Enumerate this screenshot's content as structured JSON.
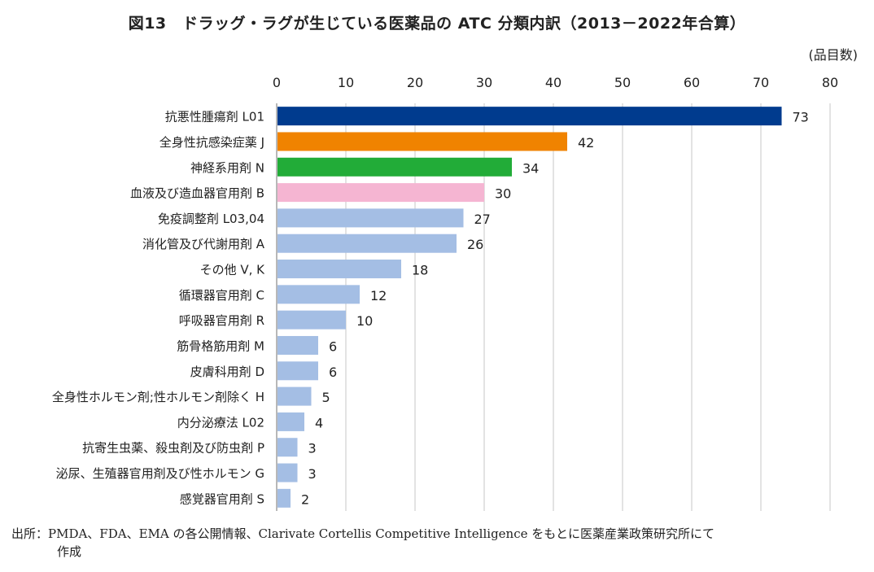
{
  "chart_data": {
    "type": "bar",
    "orientation": "horizontal",
    "title": "図13　ドラッグ・ラグが生じている医薬品の ATC 分類内訳（2013－2022年合算）",
    "unit_label": "(品目数)",
    "xlim": [
      0,
      80
    ],
    "xticks": [
      0,
      10,
      20,
      30,
      40,
      50,
      60,
      70,
      80
    ],
    "grid": true,
    "categories": [
      "抗悪性腫瘍剤 L01",
      "全身性抗感染症薬 J",
      "神経系用剤 N",
      "血液及び造血器官用剤 B",
      "免疫調整剤 L03,04",
      "消化管及び代謝用剤 A",
      "その他 V, K",
      "循環器官用剤 C",
      "呼吸器官用剤 R",
      "筋骨格筋用剤 M",
      "皮膚科用剤 D",
      "全身性ホルモン剤;性ホルモン剤除く H",
      "内分泌療法 L02",
      "抗寄生虫薬、殺虫剤及び防虫剤 P",
      "泌尿、生殖器官用剤及び性ホルモン G",
      "感覚器官用剤 S"
    ],
    "values": [
      73,
      42,
      34,
      30,
      27,
      26,
      18,
      12,
      10,
      6,
      6,
      5,
      4,
      3,
      3,
      2
    ],
    "colors": [
      "#003b8e",
      "#f08300",
      "#22ac38",
      "#f5b5d2",
      "#a4bee4",
      "#a4bee4",
      "#a4bee4",
      "#a4bee4",
      "#a4bee4",
      "#a4bee4",
      "#a4bee4",
      "#a4bee4",
      "#a4bee4",
      "#a4bee4",
      "#a4bee4",
      "#a4bee4"
    ]
  },
  "source": {
    "line1": "出所：PMDA、FDA、EMA の各公開情報、Clarivate Cortellis Competitive Intelligence をもとに医薬産業政策研究所にて",
    "line2": "作成"
  }
}
